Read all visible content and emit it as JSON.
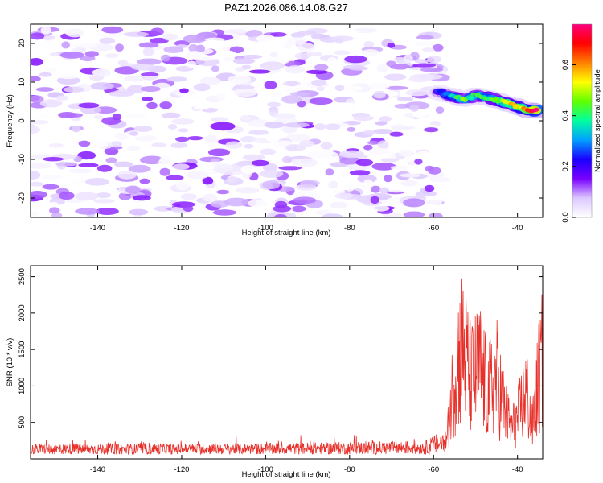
{
  "title": "PAZ1.2026.086.14.08.G27",
  "chart_data": [
    {
      "type": "heatmap",
      "title": "PAZ1.2026.086.14.08.G27",
      "xlabel": "Height of straight line (km)",
      "ylabel": "Frequency (Hz)",
      "xlim": [
        -156,
        -34
      ],
      "ylim": [
        -25,
        25
      ],
      "xticks": [
        -140,
        -120,
        -100,
        -80,
        -60,
        -40
      ],
      "yticks": [
        -20,
        -10,
        0,
        10,
        20
      ],
      "colorbar": {
        "label": "Normalized spectral amplitude",
        "range": [
          0.0,
          0.76
        ],
        "ticks": [
          0.0,
          0.2,
          0.4,
          0.6
        ],
        "colormap": [
          "#ffffff",
          "#dcc8ff",
          "#7a00ff",
          "#1a00ff",
          "#00a0ff",
          "#00ffa0",
          "#60ff00",
          "#ffff00",
          "#ff8000",
          "#ff0000",
          "#ff0080"
        ]
      },
      "noise_region_km": [
        -156,
        -58
      ],
      "noise_band_hz": [
        -25,
        24
      ],
      "noise_amplitude_range": [
        0.0,
        0.15
      ],
      "signal_ridge": {
        "points": [
          {
            "x": -59,
            "freq": 7.5,
            "amp": 0.25
          },
          {
            "x": -56,
            "freq": 6.5,
            "amp": 0.35
          },
          {
            "x": -53,
            "freq": 5.5,
            "amp": 0.45
          },
          {
            "x": -50,
            "freq": 6.5,
            "amp": 0.4
          },
          {
            "x": -47,
            "freq": 6.0,
            "amp": 0.45
          },
          {
            "x": -44,
            "freq": 5.0,
            "amp": 0.5
          },
          {
            "x": -41,
            "freq": 4.0,
            "amp": 0.55
          },
          {
            "x": -38,
            "freq": 3.0,
            "amp": 0.65
          },
          {
            "x": -35,
            "freq": 2.5,
            "amp": 0.75
          }
        ]
      }
    },
    {
      "type": "line",
      "xlabel": "Height of straight line (km)",
      "ylabel": "SNR (10 * v/v)",
      "xlim": [
        -156,
        -34
      ],
      "ylim": [
        0,
        2650
      ],
      "xticks": [
        -140,
        -120,
        -100,
        -80,
        -60,
        -40
      ],
      "yticks": [
        500,
        1000,
        1500,
        2000,
        2500
      ],
      "color": "#e8302a",
      "series": [
        {
          "name": "SNR",
          "envelope": [
            {
              "x": -156,
              "level": 120
            },
            {
              "x": -100,
              "level": 130
            },
            {
              "x": -62,
              "level": 160
            },
            {
              "x": -57,
              "level": 300
            },
            {
              "x": -55,
              "level": 2000
            },
            {
              "x": -53,
              "level": 2600
            },
            {
              "x": -51,
              "level": 1800
            },
            {
              "x": -49,
              "level": 2100
            },
            {
              "x": -47,
              "level": 1500
            },
            {
              "x": -45,
              "level": 1900
            },
            {
              "x": -43,
              "level": 1100
            },
            {
              "x": -41.5,
              "level": 700
            },
            {
              "x": -40,
              "level": 900
            },
            {
              "x": -38,
              "level": 1600
            },
            {
              "x": -36.5,
              "level": 700
            },
            {
              "x": -35,
              "level": 1800
            },
            {
              "x": -34,
              "level": 2250
            }
          ]
        }
      ]
    }
  ]
}
